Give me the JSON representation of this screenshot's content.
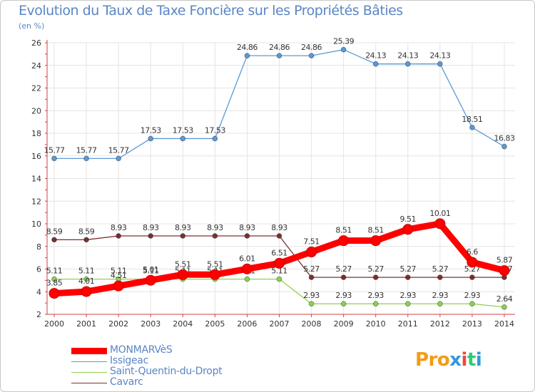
{
  "title": "Evolution du Taux de Taxe Foncière sur les Propriétés Bâties",
  "unit": "(en %)",
  "logo": {
    "p1": "Pro",
    "x": "x",
    "i1": "i",
    "t": "t",
    "i2": "i"
  },
  "colors": {
    "axis": "#d04040",
    "grid": "#e4e4e4",
    "label": "#333333",
    "tick": "#333333"
  },
  "chart_data": {
    "type": "line",
    "title": "Evolution du Taux de Taxe Foncière sur les Propriétés Bâties",
    "ylabel": "(en %)",
    "xlabel": "",
    "ylim": [
      2,
      26
    ],
    "yticks": [
      2,
      4,
      6,
      8,
      10,
      12,
      14,
      16,
      18,
      20,
      22,
      24,
      26
    ],
    "grid": true,
    "legend": "bottom-left",
    "x": [
      "2000",
      "2001",
      "2002",
      "2003",
      "2004",
      "2005",
      "2006",
      "2007",
      "2008",
      "2009",
      "2010",
      "2011",
      "2012",
      "2013",
      "2014"
    ],
    "series": [
      {
        "name": "Issigeac",
        "color": "#5b9bd5",
        "values": [
          15.77,
          15.77,
          15.77,
          17.53,
          17.53,
          17.53,
          24.86,
          24.86,
          24.86,
          25.39,
          24.13,
          24.13,
          24.13,
          18.51,
          16.83
        ],
        "labels": [
          "15.77",
          "15.77",
          "15.77",
          "17.53",
          "17.53",
          "17.53",
          "24.86",
          "24.86",
          "24.86",
          "25.39",
          "24.13",
          "24.13",
          "24.13",
          "18.51",
          "16.83"
        ]
      },
      {
        "name": "Cavarc",
        "color": "#7a3030",
        "values": [
          8.59,
          8.59,
          8.93,
          8.93,
          8.93,
          8.93,
          8.93,
          8.93,
          5.27,
          5.27,
          5.27,
          5.27,
          5.27,
          5.27,
          5.27
        ],
        "labels": [
          "8.59",
          "8.59",
          "8.93",
          "8.93",
          "8.93",
          "8.93",
          "8.93",
          "8.93",
          "5.27",
          "5.27",
          "5.27",
          "5.27",
          "5.27",
          "5.27",
          "5.27"
        ]
      },
      {
        "name": "Saint-Quentin-du-Dropt",
        "color": "#8fd14f",
        "values": [
          5.11,
          5.11,
          5.11,
          5.11,
          5.11,
          5.11,
          5.11,
          5.11,
          2.93,
          2.93,
          2.93,
          2.93,
          2.93,
          2.93,
          2.64
        ],
        "labels": [
          "5.11",
          "5.11",
          "5.11",
          "5.11",
          "5.11",
          "5.11",
          "5.11",
          "5.11",
          "2.93",
          "2.93",
          "2.93",
          "2.93",
          "2.93",
          "2.93",
          "2.64"
        ]
      },
      {
        "name": "MONMARVèS",
        "color": "#ff0000",
        "values": [
          3.85,
          4.01,
          4.51,
          5.01,
          5.51,
          5.51,
          6.01,
          6.51,
          7.51,
          8.51,
          8.51,
          9.51,
          10.01,
          6.6,
          5.87
        ],
        "labels": [
          "3.85",
          "4.01",
          "4.51",
          "5.01",
          "5.51",
          "5.51",
          "6.01",
          "6.51",
          "7.51",
          "8.51",
          "8.51",
          "9.51",
          "10.01",
          "6.6",
          "5.87"
        ]
      }
    ]
  },
  "legend_items": [
    {
      "name": "MONMARVèS",
      "color": "#ff0000"
    },
    {
      "name": "Issigeac",
      "color": "#5b9bd5"
    },
    {
      "name": "Saint-Quentin-du-Dropt",
      "color": "#8fd14f"
    },
    {
      "name": "Cavarc",
      "color": "#7a3030"
    }
  ]
}
